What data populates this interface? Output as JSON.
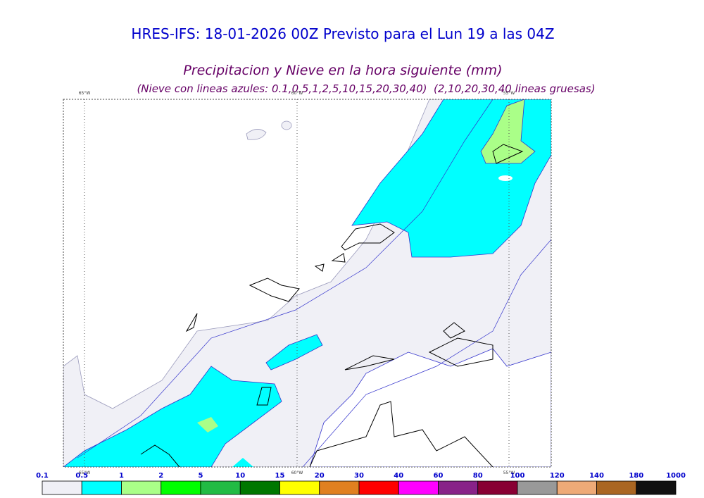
{
  "header": {
    "title": "HRES-IFS: 18-01-2026 00Z Previsto para el Lun 19 a las 04Z",
    "subtitle": "Precipitacion y Nieve en la hora siguiente (mm)",
    "note": "(Nieve con lineas azules: 0.1,0.5,1,2,5,10,15,20,30,40)  (2,10,20,30,40 lineas gruesas)"
  },
  "map": {
    "lon_labels": [
      "65°W",
      "60°W",
      "55°W"
    ]
  },
  "colorbar": {
    "labels": [
      0.1,
      0.5,
      1,
      2,
      5,
      10,
      15,
      20,
      30,
      40,
      60,
      80,
      100,
      120,
      140,
      180,
      1000
    ],
    "colors": [
      "#f0f0f6",
      "#00ffff",
      "#aaff88",
      "#00ff00",
      "#22bb44",
      "#007700",
      "#ffff00",
      "#e08020",
      "#ff0000",
      "#ff00ff",
      "#882288",
      "#880033",
      "#999999",
      "#eeaa77",
      "#aa6622",
      "#111111"
    ]
  }
}
